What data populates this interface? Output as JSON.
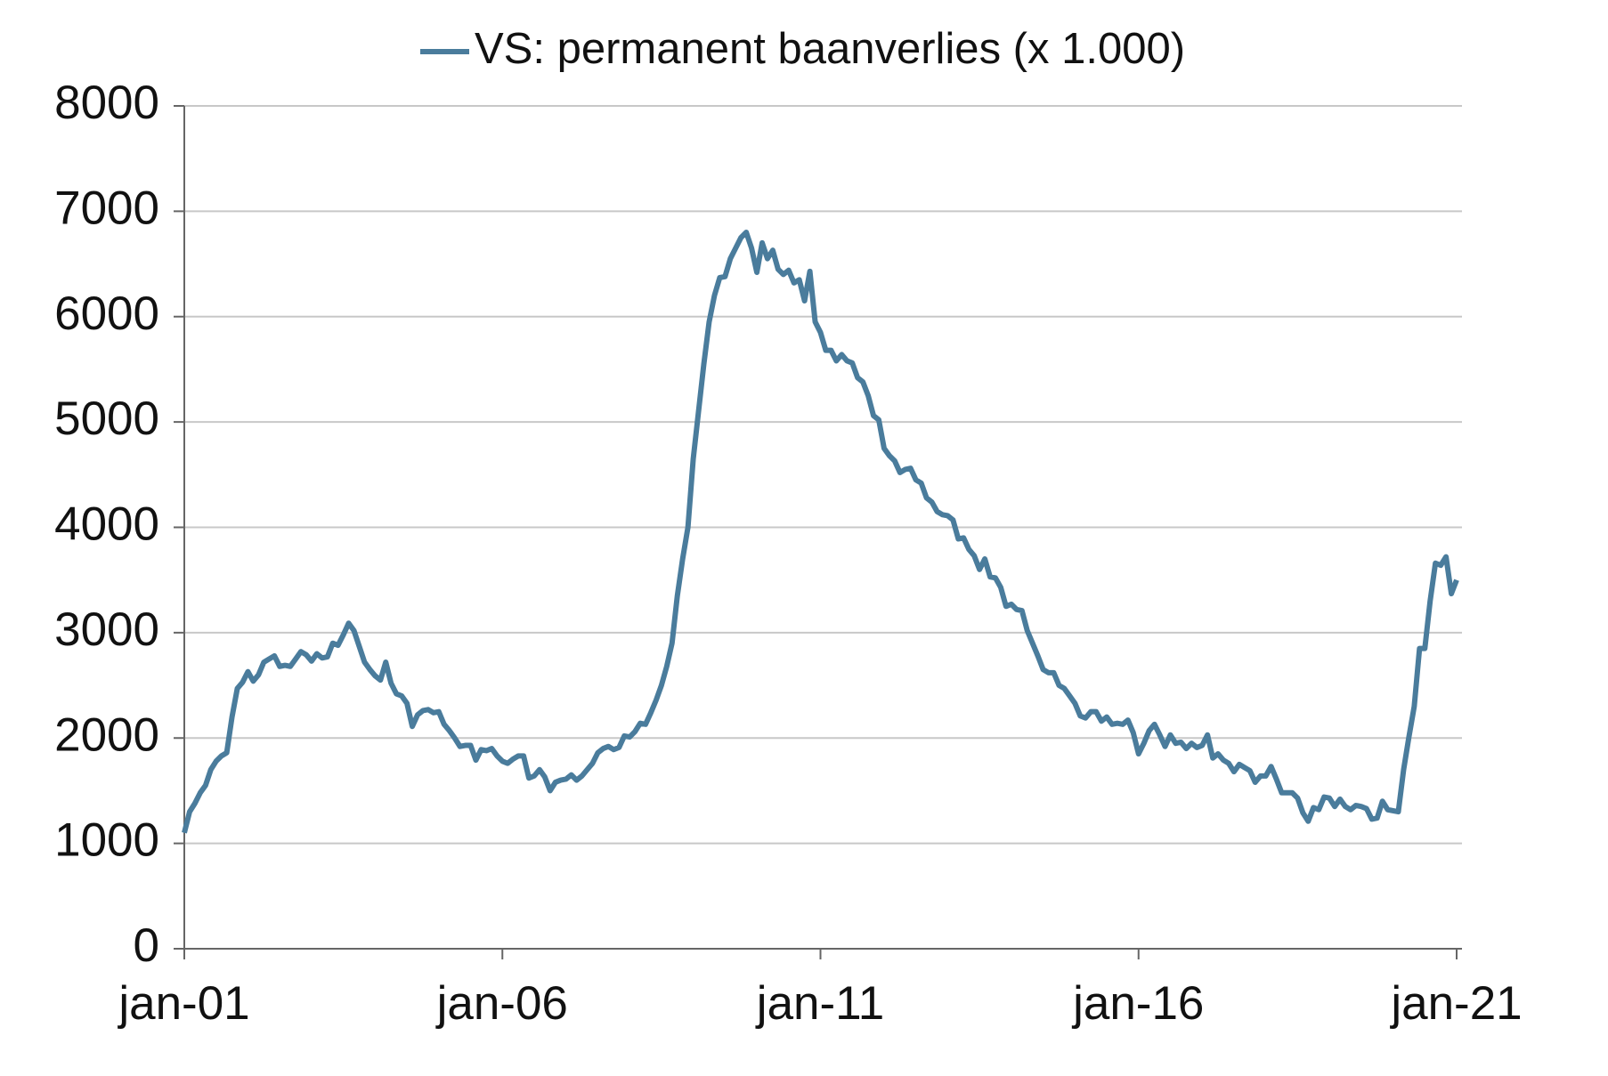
{
  "chart_data": {
    "type": "line",
    "categories": [
      "jan-01",
      null,
      null,
      null,
      null,
      null,
      null,
      null,
      null,
      null,
      null,
      null,
      null,
      null,
      null,
      null,
      null,
      null,
      null,
      null,
      null,
      null,
      null,
      null,
      null,
      null,
      null,
      null,
      null,
      null,
      null,
      null,
      null,
      null,
      null,
      null,
      null,
      null,
      null,
      null,
      null,
      null,
      null,
      null,
      null,
      null,
      null,
      null,
      null,
      null,
      null,
      null,
      null,
      null,
      null,
      null,
      null,
      null,
      null,
      null,
      "jan-06",
      null,
      null,
      null,
      null,
      null,
      null,
      null,
      null,
      null,
      null,
      null,
      null,
      null,
      null,
      null,
      null,
      null,
      null,
      null,
      null,
      null,
      null,
      null,
      null,
      null,
      null,
      null,
      null,
      null,
      null,
      null,
      null,
      null,
      null,
      null,
      null,
      null,
      null,
      null,
      null,
      null,
      null,
      null,
      null,
      null,
      null,
      null,
      null,
      null,
      null,
      null,
      null,
      null,
      null,
      null,
      null,
      null,
      null,
      null,
      "jan-11",
      null,
      null,
      null,
      null,
      null,
      null,
      null,
      null,
      null,
      null,
      null,
      null,
      null,
      null,
      null,
      null,
      null,
      null,
      null,
      null,
      null,
      null,
      null,
      null,
      null,
      null,
      null,
      null,
      null,
      null,
      null,
      null,
      null,
      null,
      null,
      null,
      null,
      null,
      null,
      null,
      null,
      null,
      null,
      null,
      null,
      null,
      null,
      null,
      null,
      null,
      null,
      null,
      null,
      null,
      null,
      null,
      null,
      null,
      null,
      "jan-16",
      null,
      null,
      null,
      null,
      null,
      null,
      null,
      null,
      null,
      null,
      null,
      null,
      null,
      null,
      null,
      null,
      null,
      null,
      null,
      null,
      null,
      null,
      null,
      null,
      null,
      null,
      null,
      null,
      null,
      null,
      null,
      null,
      null,
      null,
      null,
      null,
      null,
      null,
      null,
      null,
      null,
      null,
      null,
      null,
      null,
      null,
      null,
      null,
      null,
      null,
      null,
      null,
      null,
      null,
      null,
      null,
      null,
      null,
      null,
      "jan-21"
    ],
    "series": [
      {
        "name": "VS: permanent baanverlies (x 1.000)",
        "color": "#4a7c9c",
        "values": [
          1100,
          1300,
          1380,
          1480,
          1550,
          1700,
          1780,
          1830,
          1860,
          2200,
          2470,
          2530,
          2630,
          2540,
          2600,
          2720,
          2750,
          2780,
          2680,
          2690,
          2680,
          2750,
          2820,
          2790,
          2730,
          2800,
          2760,
          2770,
          2900,
          2880,
          2980,
          3090,
          3020,
          2870,
          2720,
          2650,
          2590,
          2550,
          2720,
          2520,
          2420,
          2400,
          2330,
          2110,
          2220,
          2260,
          2270,
          2240,
          2250,
          2130,
          2070,
          2000,
          1920,
          1930,
          1930,
          1790,
          1890,
          1880,
          1900,
          1830,
          1780,
          1760,
          1800,
          1830,
          1830,
          1620,
          1640,
          1700,
          1630,
          1500,
          1580,
          1600,
          1610,
          1650,
          1600,
          1640,
          1700,
          1760,
          1860,
          1900,
          1920,
          1890,
          1910,
          2020,
          2010,
          2060,
          2140,
          2130,
          2240,
          2360,
          2500,
          2680,
          2900,
          3350,
          3700,
          4000,
          4650,
          5100,
          5550,
          5950,
          6200,
          6370,
          6380,
          6550,
          6650,
          6750,
          6800,
          6650,
          6420,
          6700,
          6550,
          6630,
          6450,
          6400,
          6440,
          6320,
          6350,
          6150,
          6430,
          5950,
          5850,
          5680,
          5680,
          5580,
          5640,
          5580,
          5560,
          5420,
          5380,
          5250,
          5060,
          5020,
          4750,
          4680,
          4630,
          4520,
          4550,
          4560,
          4450,
          4420,
          4280,
          4240,
          4150,
          4120,
          4110,
          4070,
          3890,
          3900,
          3790,
          3730,
          3600,
          3700,
          3530,
          3520,
          3430,
          3250,
          3270,
          3220,
          3210,
          3020,
          2900,
          2780,
          2650,
          2620,
          2620,
          2500,
          2470,
          2400,
          2330,
          2210,
          2190,
          2250,
          2250,
          2160,
          2200,
          2130,
          2140,
          2130,
          2170,
          2050,
          1850,
          1950,
          2070,
          2130,
          2030,
          1920,
          2030,
          1950,
          1960,
          1900,
          1950,
          1910,
          1930,
          2030,
          1810,
          1850,
          1790,
          1760,
          1680,
          1750,
          1720,
          1690,
          1580,
          1640,
          1640,
          1730,
          1610,
          1480,
          1480,
          1480,
          1430,
          1290,
          1210,
          1340,
          1320,
          1440,
          1430,
          1350,
          1420,
          1350,
          1320,
          1360,
          1350,
          1330,
          1230,
          1240,
          1400,
          1320,
          1310,
          1300,
          1700,
          2010,
          2300,
          2850,
          2850,
          3300,
          3660,
          3640,
          3720,
          3370,
          3500
        ]
      }
    ],
    "ylim": [
      0,
      8000
    ],
    "yticks": [
      0,
      1000,
      2000,
      3000,
      4000,
      5000,
      6000,
      7000,
      8000
    ],
    "grid": true,
    "legend": "top"
  }
}
